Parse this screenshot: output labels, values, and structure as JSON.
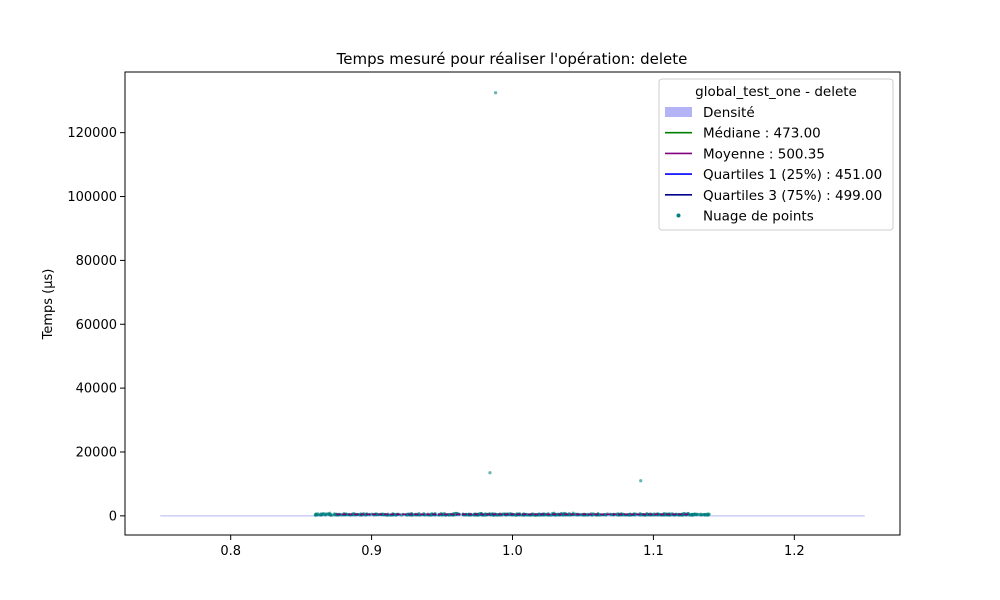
{
  "chart_data": {
    "type": "scatter",
    "title": "Temps mesuré pour réaliser l'opération: delete",
    "xlabel": "",
    "ylabel": "Temps (µs)",
    "xlim": [
      0.725,
      1.275
    ],
    "ylim": [
      -6000,
      139000
    ],
    "x_ticks": [
      0.8,
      0.9,
      1.0,
      1.1,
      1.2
    ],
    "x_tick_labels": [
      "0.8",
      "0.9",
      "1.0",
      "1.1",
      "1.2"
    ],
    "y_ticks": [
      0,
      20000,
      40000,
      60000,
      80000,
      100000,
      120000
    ],
    "y_tick_labels": [
      "0",
      "20000",
      "40000",
      "60000",
      "80000",
      "100000",
      "120000"
    ],
    "grid": false,
    "legend": {
      "position": "top-right",
      "title": "global_test_one - delete",
      "entries": [
        {
          "label": "Densité",
          "kind": "patch",
          "color": "#b3b3f5"
        },
        {
          "label": "Médiane : 473.00",
          "kind": "line",
          "color": "#008000"
        },
        {
          "label": "Moyenne : 500.35",
          "kind": "line",
          "color": "#800080"
        },
        {
          "label": "Quartiles 1 (25%) : 451.00",
          "kind": "line",
          "color": "#0000ff"
        },
        {
          "label": "Quartiles 3 (75%) : 499.00",
          "kind": "line",
          "color": "#00008b"
        },
        {
          "label": "Nuage de points",
          "kind": "point",
          "color": "#008080"
        }
      ]
    },
    "stats": {
      "median": 473.0,
      "mean": 500.35,
      "q1": 451.0,
      "q3": 499.0
    },
    "density": {
      "x_range": [
        0.75,
        1.25
      ],
      "color": "#b3b3f5"
    },
    "outliers": [
      {
        "x": 0.988,
        "y": 132500
      },
      {
        "x": 0.984,
        "y": 13500
      },
      {
        "x": 1.091,
        "y": 11000
      }
    ],
    "scatter_cluster": {
      "x_range": [
        0.79,
        1.2
      ],
      "core_x_range": [
        0.86,
        1.14
      ],
      "y_range": [
        200,
        1200
      ],
      "color": "#008080"
    },
    "quartile_line_x_range": [
      0.875,
      1.125
    ]
  }
}
